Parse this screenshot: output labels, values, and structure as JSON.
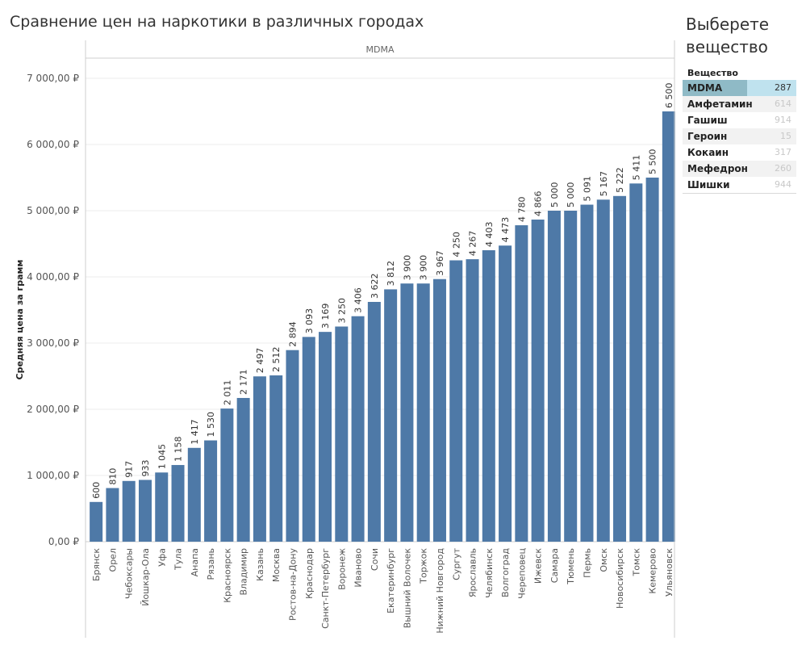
{
  "title": "Сравнение цен на наркотики в различных городах",
  "filter_panel": {
    "title": "Выберете вещество",
    "header": "Вещество",
    "items": [
      {
        "name": "MDMA",
        "count": "287",
        "selected": true
      },
      {
        "name": "Амфетамин",
        "count": "614",
        "selected": false
      },
      {
        "name": "Гашиш",
        "count": "914",
        "selected": false
      },
      {
        "name": "Героин",
        "count": "15",
        "selected": false
      },
      {
        "name": "Кокаин",
        "count": "317",
        "selected": false
      },
      {
        "name": "Мефедрон",
        "count": "260",
        "selected": false
      },
      {
        "name": "Шишки",
        "count": "944",
        "selected": false
      }
    ]
  },
  "chart_data": {
    "type": "bar",
    "panel_label": "MDMA",
    "ylabel": "Средняя цена за грамм",
    "ylim": [
      0,
      7400
    ],
    "yticks": [
      0,
      1000,
      2000,
      3000,
      4000,
      5000,
      6000,
      7000
    ],
    "ytick_labels": [
      "0,00 ₽",
      "1 000,00 ₽",
      "2 000,00 ₽",
      "3 000,00 ₽",
      "4 000,00 ₽",
      "5 000,00 ₽",
      "6 000,00 ₽",
      "7 000,00 ₽"
    ],
    "bar_color": "#4e79a7",
    "grid": true,
    "categories": [
      "Брянск",
      "Орел",
      "Чебоксары",
      "Йошкар-Ола",
      "Уфа",
      "Тула",
      "Анапа",
      "Рязань",
      "Красноярск",
      "Владимир",
      "Казань",
      "Москва",
      "Ростов-на-Дону",
      "Краснодар",
      "Санкт-Петербург",
      "Воронеж",
      "Иваново",
      "Сочи",
      "Екатеринбург",
      "Вышний Волочек",
      "Торжок",
      "Нижний Новгород",
      "Сургут",
      "Ярославль",
      "Челябинск",
      "Волгоград",
      "Череповец",
      "Ижевск",
      "Самара",
      "Тюмень",
      "Пермь",
      "Омск",
      "Новосибирск",
      "Томск",
      "Кемерово",
      "Ульяновск"
    ],
    "values": [
      600,
      810,
      917,
      933,
      1045,
      1158,
      1417,
      1530,
      2011,
      2171,
      2497,
      2512,
      2894,
      3093,
      3169,
      3250,
      3406,
      3622,
      3812,
      3900,
      3900,
      3967,
      4250,
      4267,
      4403,
      4473,
      4780,
      4866,
      5000,
      5000,
      5091,
      5167,
      5222,
      5411,
      5500,
      6500
    ],
    "value_labels": [
      "600",
      "810",
      "917",
      "933",
      "1 045",
      "1 158",
      "1 417",
      "1 530",
      "2 011",
      "2 171",
      "2 497",
      "2 512",
      "2 894",
      "3 093",
      "3 169",
      "3 250",
      "3 406",
      "3 622",
      "3 812",
      "3 900",
      "3 900",
      "3 967",
      "4 250",
      "4 267",
      "4 403",
      "4 473",
      "4 780",
      "4 866",
      "5 000",
      "5 000",
      "5 091",
      "5 167",
      "5 222",
      "5 411",
      "5 500",
      "6 500"
    ]
  }
}
